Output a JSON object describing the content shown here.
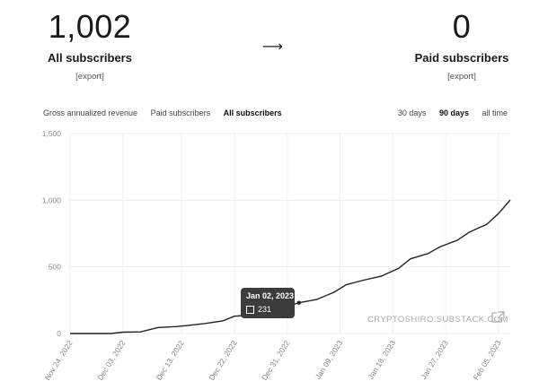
{
  "summary": {
    "all_value": "1,002",
    "all_label": "All subscribers",
    "all_export": "[export]",
    "arrow": "⟶",
    "paid_value": "0",
    "paid_label": "Paid subscribers",
    "paid_export": "[export]"
  },
  "tabs": [
    "Gross annualized revenue",
    "Paid subscribers",
    "All subscribers"
  ],
  "active_tab": "All subscribers",
  "ranges": [
    "30 days",
    "90 days",
    "all time"
  ],
  "active_range": "90 days",
  "tooltip": {
    "date": "Jan 02, 2023",
    "value": "231"
  },
  "watermark": "CRYPTOSHIRO.SUBSTACK.COM",
  "chart_data": {
    "type": "line",
    "xlabel": "",
    "ylabel": "",
    "ylim": [
      0,
      1500
    ],
    "yticks": [
      0,
      500,
      1000,
      1500
    ],
    "ytick_labels": [
      "0",
      "500",
      "1,000",
      "1,500"
    ],
    "xtick_labels": [
      "Nov 24, 2022",
      "Dec 03, 2022",
      "Dec 13, 2022",
      "Dec 22, 2022",
      "Dec 31, 2022",
      "Jan 09, 2023",
      "Jan 18, 2023",
      "Jan 27, 2023",
      "Feb 05, 2023"
    ],
    "grid": true,
    "line_color": "#222222",
    "series": [
      {
        "x": [
          "2022-11-24",
          "2022-12-01",
          "2022-12-03",
          "2022-12-06",
          "2022-12-09",
          "2022-12-12",
          "2022-12-14",
          "2022-12-17",
          "2022-12-20",
          "2022-12-22",
          "2022-12-25",
          "2022-12-28",
          "2022-12-31",
          "2023-01-02",
          "2023-01-05",
          "2023-01-08",
          "2023-01-10",
          "2023-01-13",
          "2023-01-16",
          "2023-01-19",
          "2023-01-21",
          "2023-01-24",
          "2023-01-26",
          "2023-01-29",
          "2023-01-31",
          "2023-02-03",
          "2023-02-05",
          "2023-02-07"
        ],
        "y": [
          0,
          0,
          10,
          12,
          45,
          52,
          60,
          75,
          95,
          130,
          140,
          150,
          205,
          231,
          255,
          310,
          365,
          400,
          430,
          490,
          560,
          600,
          650,
          700,
          760,
          820,
          900,
          1002
        ]
      }
    ]
  }
}
